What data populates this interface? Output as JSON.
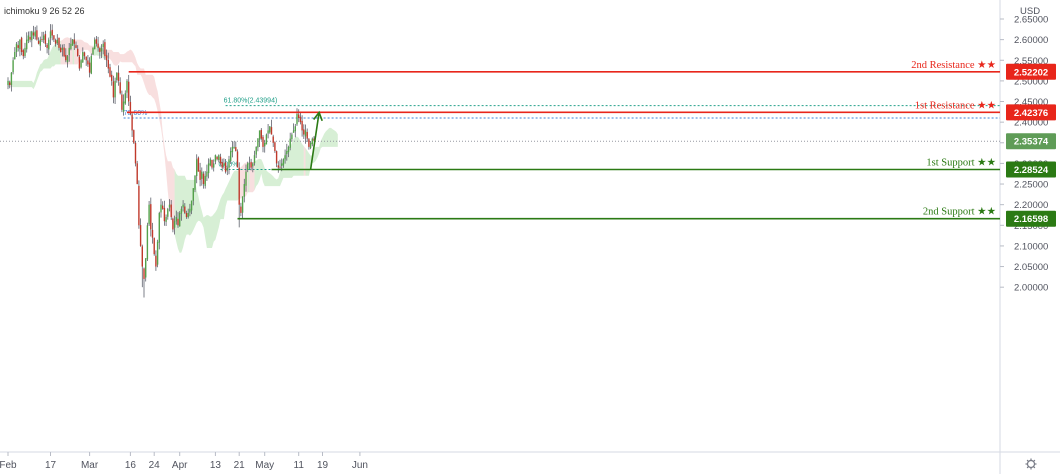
{
  "indicator": {
    "label": "ichimoku 9 26 52 26"
  },
  "chart_data": {
    "type": "candlestick",
    "currency_label": "USD",
    "ylim": [
      1.975,
      2.665
    ],
    "y_ticks": [
      "2.65000",
      "2.60000",
      "2.55000",
      "2.50000",
      "2.45000",
      "2.40000",
      "2.35000",
      "2.30000",
      "2.25000",
      "2.20000",
      "2.15000",
      "2.10000",
      "2.05000",
      "2.00000"
    ],
    "x_ticks": [
      {
        "label": "Feb",
        "index": 0
      },
      {
        "label": "17",
        "index": 25
      },
      {
        "label": "Mar",
        "index": 48
      },
      {
        "label": "16",
        "index": 72
      },
      {
        "label": "24",
        "index": 86
      },
      {
        "label": "Apr",
        "index": 101
      },
      {
        "label": "13",
        "index": 122
      },
      {
        "label": "21",
        "index": 136
      },
      {
        "label": "May",
        "index": 151
      },
      {
        "label": "11",
        "index": 171
      },
      {
        "label": "19",
        "index": 185
      },
      {
        "label": "Jun",
        "index": 207
      }
    ],
    "close_path": [
      2.5,
      2.49,
      2.52,
      2.55,
      2.57,
      2.59,
      2.58,
      2.6,
      2.57,
      2.56,
      2.58,
      2.6,
      2.61,
      2.6,
      2.62,
      2.61,
      2.62,
      2.6,
      2.59,
      2.6,
      2.6,
      2.61,
      2.59,
      2.58,
      2.6,
      2.62,
      2.61,
      2.6,
      2.59,
      2.6,
      2.58,
      2.57,
      2.58,
      2.56,
      2.55,
      2.56,
      2.58,
      2.59,
      2.6,
      2.59,
      2.58,
      2.56,
      2.53,
      2.55,
      2.57,
      2.56,
      2.55,
      2.54,
      2.52,
      2.56,
      2.58,
      2.6,
      2.59,
      2.58,
      2.57,
      2.58,
      2.59,
      2.56,
      2.55,
      2.53,
      2.51,
      2.5,
      2.46,
      2.5,
      2.52,
      2.5,
      2.47,
      2.43,
      2.45,
      2.47,
      2.5,
      2.45,
      2.42,
      2.38,
      2.35,
      2.3,
      2.25,
      2.15,
      2.1,
      2.05,
      2.02,
      2.07,
      2.15,
      2.2,
      2.14,
      2.12,
      2.08,
      2.05,
      2.11,
      2.18,
      2.2,
      2.19,
      2.16,
      2.17,
      2.19,
      2.2,
      2.17,
      2.14,
      2.16,
      2.17,
      2.15,
      2.18,
      2.19,
      2.2,
      2.18,
      2.17,
      2.18,
      2.19,
      2.21,
      2.24,
      2.27,
      2.31,
      2.28,
      2.26,
      2.28,
      2.25,
      2.27,
      2.28,
      2.3,
      2.31,
      2.29,
      2.3,
      2.32,
      2.31,
      2.32,
      2.3,
      2.29,
      2.3,
      2.28,
      2.29,
      2.31,
      2.33,
      2.34,
      2.34,
      2.33,
      2.29,
      2.2,
      2.18,
      2.22,
      2.25,
      2.28,
      2.3,
      2.3,
      2.29,
      2.3,
      2.32,
      2.34,
      2.36,
      2.38,
      2.36,
      2.34,
      2.35,
      2.37,
      2.38,
      2.39,
      2.37,
      2.35,
      2.33,
      2.3,
      2.29,
      2.29,
      2.3,
      2.31,
      2.32,
      2.33,
      2.34,
      2.36,
      2.37,
      2.38,
      2.39,
      2.42,
      2.41,
      2.4,
      2.38,
      2.37,
      2.38,
      2.36,
      2.34,
      2.35,
      2.36,
      2.355
    ],
    "horizontal_levels": [
      {
        "name": "2nd Resistance ★★",
        "value": 2.52202,
        "price_label": "2.52202",
        "color": "#e8261b",
        "start_index": 71
      },
      {
        "name": "1st Resistance ★★",
        "value": 2.42376,
        "price_label": "2.42376",
        "color": "#e8261b",
        "start_index": 70
      },
      {
        "name": "1st Support ★★",
        "value": 2.28524,
        "price_label": "2.28524",
        "color": "#2b7a14",
        "start_index": 155
      },
      {
        "name": "2nd Support ★★",
        "value": 2.16598,
        "price_label": "2.16598",
        "color": "#2b7a14",
        "start_index": 135
      }
    ],
    "current_price": {
      "value": 2.35374,
      "price_label": "2.35374",
      "color": "#5f9c57"
    },
    "fib_lines": [
      {
        "label": "61.80%(2.43994)",
        "value": 2.43994,
        "color": "#23a08a",
        "start_index": 128
      },
      {
        "label": "78.60%",
        "value": 2.41,
        "color": "#3d82d6",
        "start_index": 68
      },
      {
        "label": "0.00%",
        "value": 2.28524,
        "color": "#23a08a",
        "start_index": 125
      }
    ],
    "arrow": {
      "from_index": 178,
      "from_value": 2.28524,
      "to_index": 183,
      "to_value": 2.42376,
      "color": "#2b7a14"
    }
  }
}
